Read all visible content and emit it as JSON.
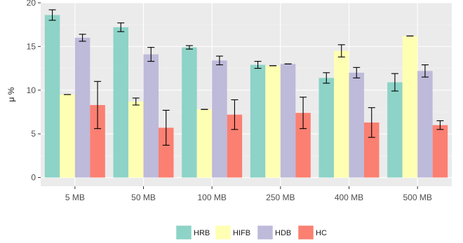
{
  "chart_data": {
    "type": "bar",
    "title": "",
    "xlabel": "",
    "ylabel": "μ %",
    "ylim": [
      -1,
      20
    ],
    "yticks": [
      0,
      5,
      10,
      15,
      20
    ],
    "grid": true,
    "legend_position": "bottom",
    "categories": [
      "5 MB",
      "50 MB",
      "100 MB",
      "250 MB",
      "400 MB",
      "500 MB"
    ],
    "series": [
      {
        "name": "HRB",
        "color": "#8dd3c7",
        "values": [
          18.6,
          17.2,
          14.9,
          12.9,
          11.4,
          10.9
        ],
        "error": [
          0.6,
          0.5,
          0.2,
          0.4,
          0.6,
          1.0
        ]
      },
      {
        "name": "HIFB",
        "color": "#ffffb3",
        "values": [
          9.5,
          8.7,
          7.8,
          12.8,
          14.5,
          16.2
        ],
        "error": [
          0.0,
          0.4,
          0.0,
          0.0,
          0.7,
          0.0
        ]
      },
      {
        "name": "HDB",
        "color": "#bebada",
        "values": [
          16.0,
          14.1,
          13.4,
          13.0,
          12.0,
          12.2
        ],
        "error": [
          0.4,
          0.8,
          0.5,
          0.0,
          0.6,
          0.7
        ]
      },
      {
        "name": "HC",
        "color": "#fb8072",
        "values": [
          8.3,
          5.7,
          7.2,
          7.4,
          6.3,
          6.0
        ],
        "error": [
          2.7,
          2.0,
          1.7,
          1.8,
          1.7,
          0.5
        ]
      }
    ]
  }
}
